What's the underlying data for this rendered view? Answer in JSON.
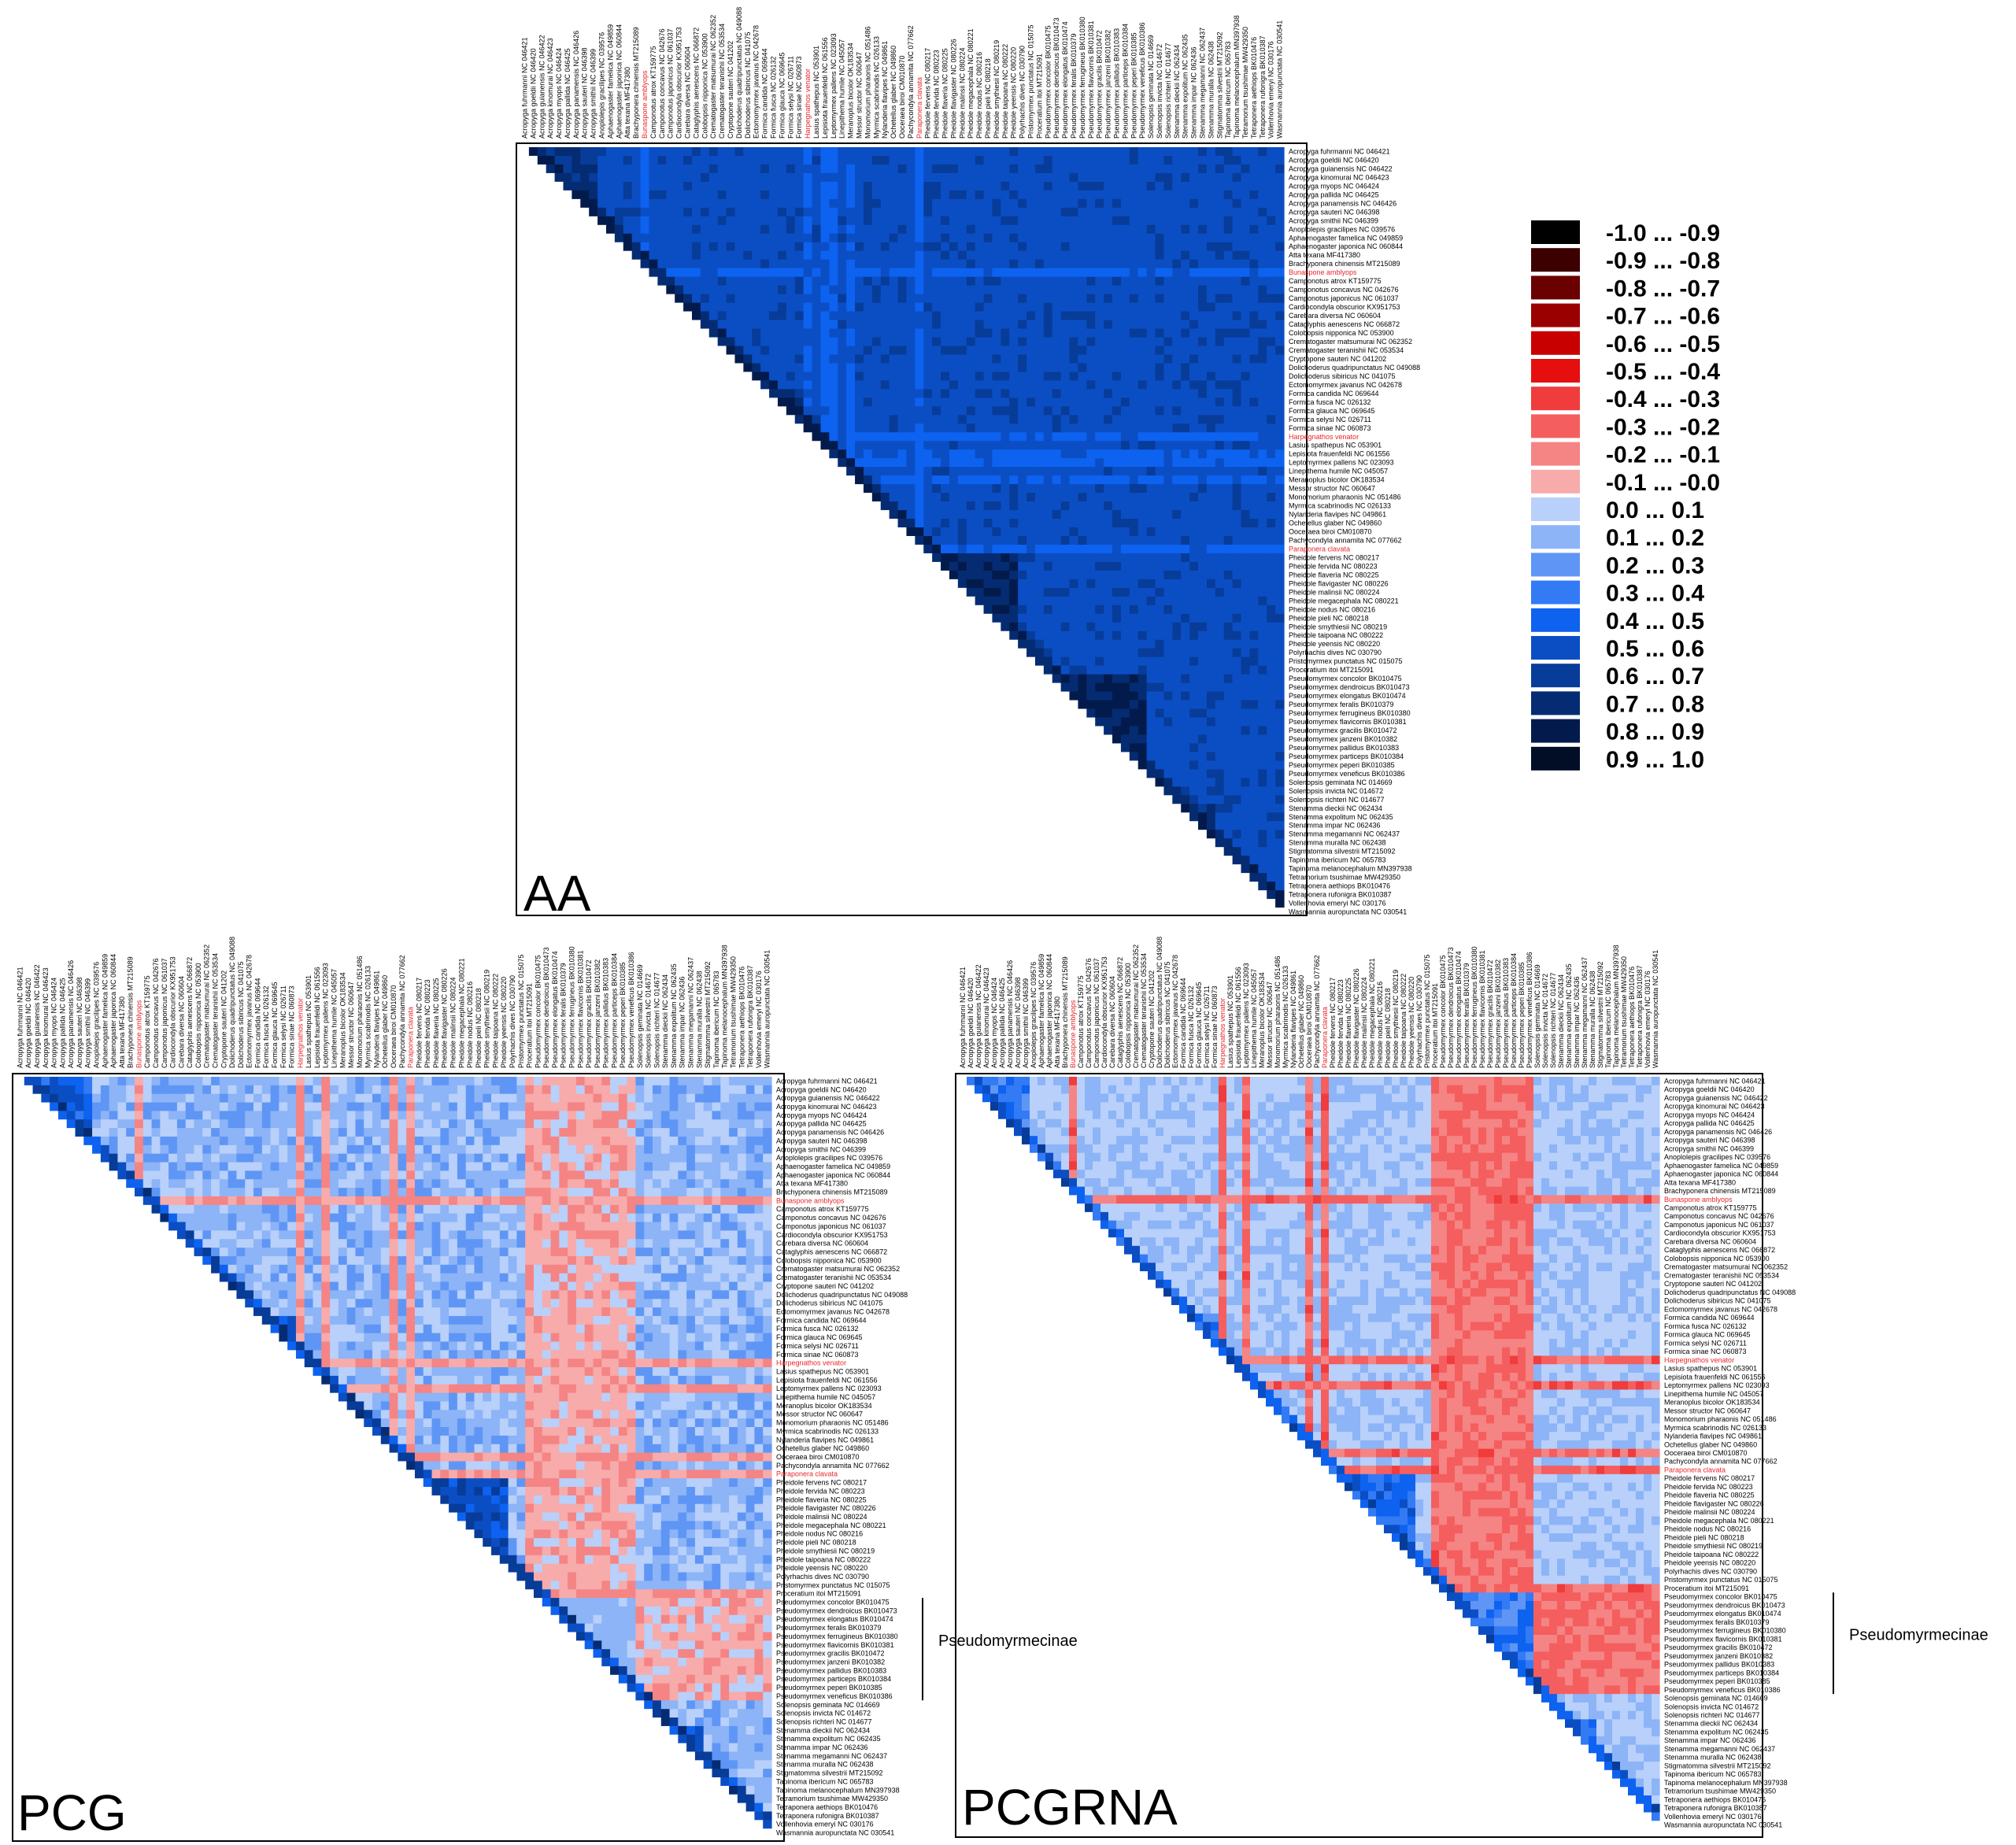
{
  "chart_data": {
    "type": "heatmap",
    "subtype": "lower-triangular correlation matrix",
    "species": [
      "Acropyga fuhrmanni NC 046421",
      "Acropyga goeldii NC 046420",
      "Acropyga guianensis NC 046422",
      "Acropyga kinomurai NC 046423",
      "Acropyga myops NC 046424",
      "Acropyga pallida NC 046425",
      "Acropyga panamensis NC 046426",
      "Acropyga sauteri NC 046398",
      "Acropyga smithii NC 046399",
      "Anoplolepis gracilipes NC 039576",
      "Aphaenogaster famelica NC 049859",
      "Aphaenogaster japonica NC 060844",
      "Atta texana MF417380",
      "Brachyponera chinensis MT215089",
      "Bunaspone amblyops",
      "Camponotus atrox KT159775",
      "Camponotus concavus NC 042676",
      "Camponotus japonicus NC 061037",
      "Cardiocondyla obscurior KX951753",
      "Carebara diversa NC 060604",
      "Cataglyphis aenescens NC 066872",
      "Colobopsis nipponica NC 053900",
      "Crematogaster matsumurai NC 062352",
      "Crematogaster teranishii NC 053534",
      "Cryptopone sauteri NC 041202",
      "Dolichoderus quadripunctatus NC 049088",
      "Dolichoderus sibiricus NC 041075",
      "Ectomomyrmex javanus NC 042678",
      "Formica candida NC 069644",
      "Formica fusca NC 026132",
      "Formica glauca NC 069645",
      "Formica selysi NC 026711",
      "Formica sinae NC 060873",
      "Harpegnathos venator",
      "Lasius spathepus NC 053901",
      "Lepisiota frauenfeldi NC 061556",
      "Leptomyrmex pallens NC 023093",
      "Linepithema humile NC 045057",
      "Meranoplus bicolor OK183534",
      "Messor structor NC 060647",
      "Monomorium pharaonis NC 051486",
      "Myrmica scabrinodis NC 026133",
      "Nylanderia flavipes NC 049861",
      "Ochetellus glaber NC 049860",
      "Ooceraea biroi CM010870",
      "Pachycondyla annamita NC 077662",
      "Paraponera clavata",
      "Pheidole fervens NC 080217",
      "Pheidole fervida NC 080223",
      "Pheidole flaveria NC 080225",
      "Pheidole flavigaster NC 080226",
      "Pheidole malinsii NC 080224",
      "Pheidole megacephala NC 080221",
      "Pheidole nodus NC 080216",
      "Pheidole pieli NC 080218",
      "Pheidole smythiesii NC 080219",
      "Pheidole taipoana NC 080222",
      "Pheidole yeensis NC 080220",
      "Polyrhachis dives NC 030790",
      "Pristomyrmex punctatus NC 015075",
      "Proceratium itoi MT215091",
      "Pseudomyrmex concolor BK010475",
      "Pseudomyrmex dendroicus BK010473",
      "Pseudomyrmex elongatus BK010474",
      "Pseudomyrmex feralis BK010379",
      "Pseudomyrmex ferrugineus BK010380",
      "Pseudomyrmex flavicornis BK010381",
      "Pseudomyrmex gracilis BK010472",
      "Pseudomyrmex janzeni BK010382",
      "Pseudomyrmex pallidus BK010383",
      "Pseudomyrmex particeps BK010384",
      "Pseudomyrmex peperi BK010385",
      "Pseudomyrmex veneficus BK010386",
      "Solenopsis geminata NC 014669",
      "Solenopsis invicta NC 014672",
      "Solenopsis richteri NC 014677",
      "Stenamma dieckii NC 062434",
      "Stenamma expolitum NC 062435",
      "Stenamma impar NC 062436",
      "Stenamma megamanni NC 062437",
      "Stenamma muralla NC 062438",
      "Stigmatomma silvestrii MT215092",
      "Tapinoma ibericum NC 065783",
      "Tapinoma melanocephalum MN397938",
      "Tetramorium tsushimae MW429350",
      "Tetraponera aethiops BK010476",
      "Tetraponera rufonigra BK010387",
      "Vollenhovia emeryi NC 030176",
      "Wasmannia auropunctata NC 030541"
    ],
    "highlighted_species": [
      "Bunaspone amblyops",
      "Harpegnathos venator",
      "Paraponera clavata"
    ],
    "panels": [
      {
        "id": "AA",
        "title": "AA",
        "value_range": [
          0.3,
          0.9
        ],
        "notable_group": null,
        "annotation": ""
      },
      {
        "id": "PCG",
        "title": "PCG",
        "value_range": [
          -0.3,
          0.9
        ],
        "notable_group": "Pseudomyrmecinae",
        "annotation": "Pseudomyrmecinae"
      },
      {
        "id": "PCGRNA",
        "title": "PCGRNA",
        "value_range": [
          -0.4,
          0.7
        ],
        "notable_group": "Pseudomyrmecinae",
        "annotation": "Pseudomyrmecinae"
      }
    ],
    "legend": {
      "bins": [
        {
          "label": "-1.0 ... -0.9",
          "color": "#000000"
        },
        {
          "label": "-0.9 ... -0.8",
          "color": "#3d0000"
        },
        {
          "label": "-0.8 ... -0.7",
          "color": "#6b0000"
        },
        {
          "label": "-0.7 ... -0.6",
          "color": "#9a0000"
        },
        {
          "label": "-0.6 ... -0.5",
          "color": "#c90000"
        },
        {
          "label": "-0.5 ... -0.4",
          "color": "#e50f0f"
        },
        {
          "label": "-0.4 ... -0.3",
          "color": "#f03c3c"
        },
        {
          "label": "-0.3 ... -0.2",
          "color": "#f55e5e"
        },
        {
          "label": "-0.2 ... -0.1",
          "color": "#f58484"
        },
        {
          "label": "-0.1 ... -0.0",
          "color": "#f7abab"
        },
        {
          "label": "0.0 ... 0.1",
          "color": "#b8d0fa"
        },
        {
          "label": "0.1 ... 0.2",
          "color": "#8cb4f7"
        },
        {
          "label": "0.2 ... 0.3",
          "color": "#5f96f5"
        },
        {
          "label": "0.3 ... 0.4",
          "color": "#337af5"
        },
        {
          "label": "0.4 ... 0.5",
          "color": "#0e62f0"
        },
        {
          "label": "0.5 ... 0.6",
          "color": "#0b4ec4"
        },
        {
          "label": "0.6 ... 0.7",
          "color": "#073c99"
        },
        {
          "label": "0.7 ... 0.8",
          "color": "#052c72"
        },
        {
          "label": "0.8 ... 0.9",
          "color": "#031b4c"
        },
        {
          "label": "0.9 ... 1.0",
          "color": "#010e26"
        }
      ]
    }
  }
}
